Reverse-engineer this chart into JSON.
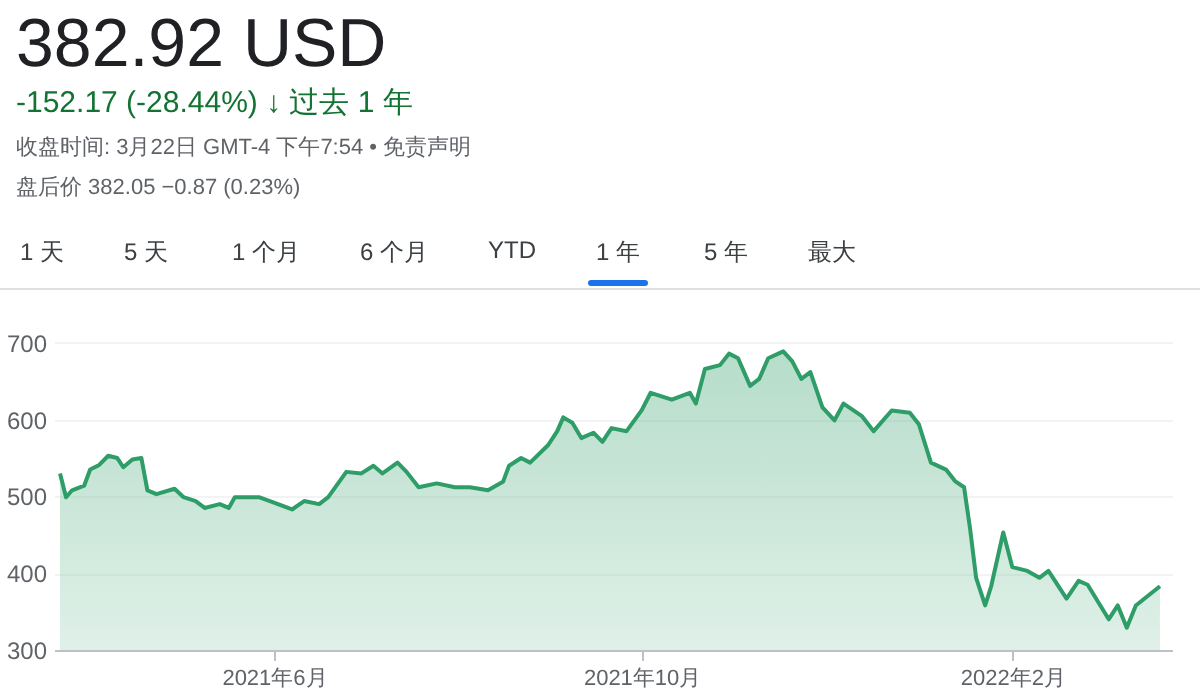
{
  "chart_data": {
    "type": "area",
    "title": "382.92 USD",
    "subtitle": "-152.17 (-28.44%) ↓ 过去 1 年",
    "annotations": [
      "收盘时间: 3月22日 GMT-4 下午7:54 • 免责声明",
      "盘后价 382.05 −0.87 (0.23%)",
      "1 天",
      "5 天",
      "1 个月",
      "6 个月",
      "YTD",
      "1 年",
      "5 年",
      "最大"
    ],
    "x": [
      "2021-03-22",
      "2021-03-24",
      "2021-03-26",
      "2021-03-30",
      "2021-04-01",
      "2021-04-04",
      "2021-04-07",
      "2021-04-10",
      "2021-04-12",
      "2021-04-15",
      "2021-04-18",
      "2021-04-20",
      "2021-04-23",
      "2021-04-29",
      "2021-05-02",
      "2021-05-06",
      "2021-05-09",
      "2021-05-14",
      "2021-05-17",
      "2021-05-19",
      "2021-05-27",
      "2021-06-01",
      "2021-06-07",
      "2021-06-11",
      "2021-06-16",
      "2021-06-19",
      "2021-06-25",
      "2021-06-30",
      "2021-07-04",
      "2021-07-07",
      "2021-07-12",
      "2021-07-15",
      "2021-07-19",
      "2021-07-25",
      "2021-07-31",
      "2021-08-05",
      "2021-08-11",
      "2021-08-16",
      "2021-08-18",
      "2021-08-22",
      "2021-08-25",
      "2021-08-31",
      "2021-09-03",
      "2021-09-05",
      "2021-09-08",
      "2021-09-11",
      "2021-09-15",
      "2021-09-18",
      "2021-09-21",
      "2021-09-26",
      "2021-10-01",
      "2021-10-04",
      "2021-10-11",
      "2021-10-17",
      "2021-10-19",
      "2021-10-22",
      "2021-10-27",
      "2021-10-30",
      "2021-11-02",
      "2021-11-06",
      "2021-11-09",
      "2021-11-12",
      "2021-11-17",
      "2021-11-20",
      "2021-11-23",
      "2021-11-26",
      "2021-11-30",
      "2021-12-04",
      "2021-12-07",
      "2021-12-13",
      "2021-12-17",
      "2021-12-23",
      "2021-12-29",
      "2022-01-01",
      "2022-01-05",
      "2022-01-10",
      "2022-01-13",
      "2022-01-16",
      "2022-01-18",
      "2022-01-20",
      "2022-01-23",
      "2022-01-25",
      "2022-01-29",
      "2022-02-01",
      "2022-02-06",
      "2022-02-10",
      "2022-02-13",
      "2022-02-19",
      "2022-02-23",
      "2022-02-26",
      "2022-03-05",
      "2022-03-08",
      "2022-03-11",
      "2022-03-14",
      "2022-03-22"
    ],
    "series": [
      {
        "color": "#2e9d68",
        "values": [
          530,
          499,
          508,
          514,
          535,
          541,
          553,
          550,
          538,
          548,
          550,
          508,
          503,
          510,
          499,
          494,
          485,
          490,
          485,
          499,
          499,
          492,
          483,
          494,
          490,
          499,
          532,
          530,
          540,
          530,
          544,
          532,
          512,
          517,
          512,
          512,
          508,
          519,
          540,
          550,
          544,
          567,
          585,
          603,
          596,
          576,
          583,
          571,
          589,
          585,
          612,
          635,
          626,
          635,
          621,
          666,
          671,
          686,
          680,
          644,
          653,
          680,
          689,
          676,
          653,
          662,
          616,
          599,
          621,
          605,
          585,
          612,
          609,
          594,
          544,
          535,
          520,
          512,
          458,
          394,
          358,
          383,
          453,
          408,
          403,
          394,
          403,
          367,
          390,
          385,
          340,
          358,
          329,
          358,
          383
        ]
      }
    ],
    "xlim": [
      "2021-03-20",
      "2022-03-26"
    ],
    "xticks": [
      {
        "value": "2021-06-01",
        "label": "2021年6月"
      },
      {
        "value": "2021-10-01",
        "label": "2021年10月"
      },
      {
        "value": "2022-02-01",
        "label": "2022年2月"
      }
    ],
    "ylim": [
      300,
      735
    ],
    "yticks": [
      300,
      400,
      500,
      600,
      700
    ],
    "grid": "y"
  }
}
